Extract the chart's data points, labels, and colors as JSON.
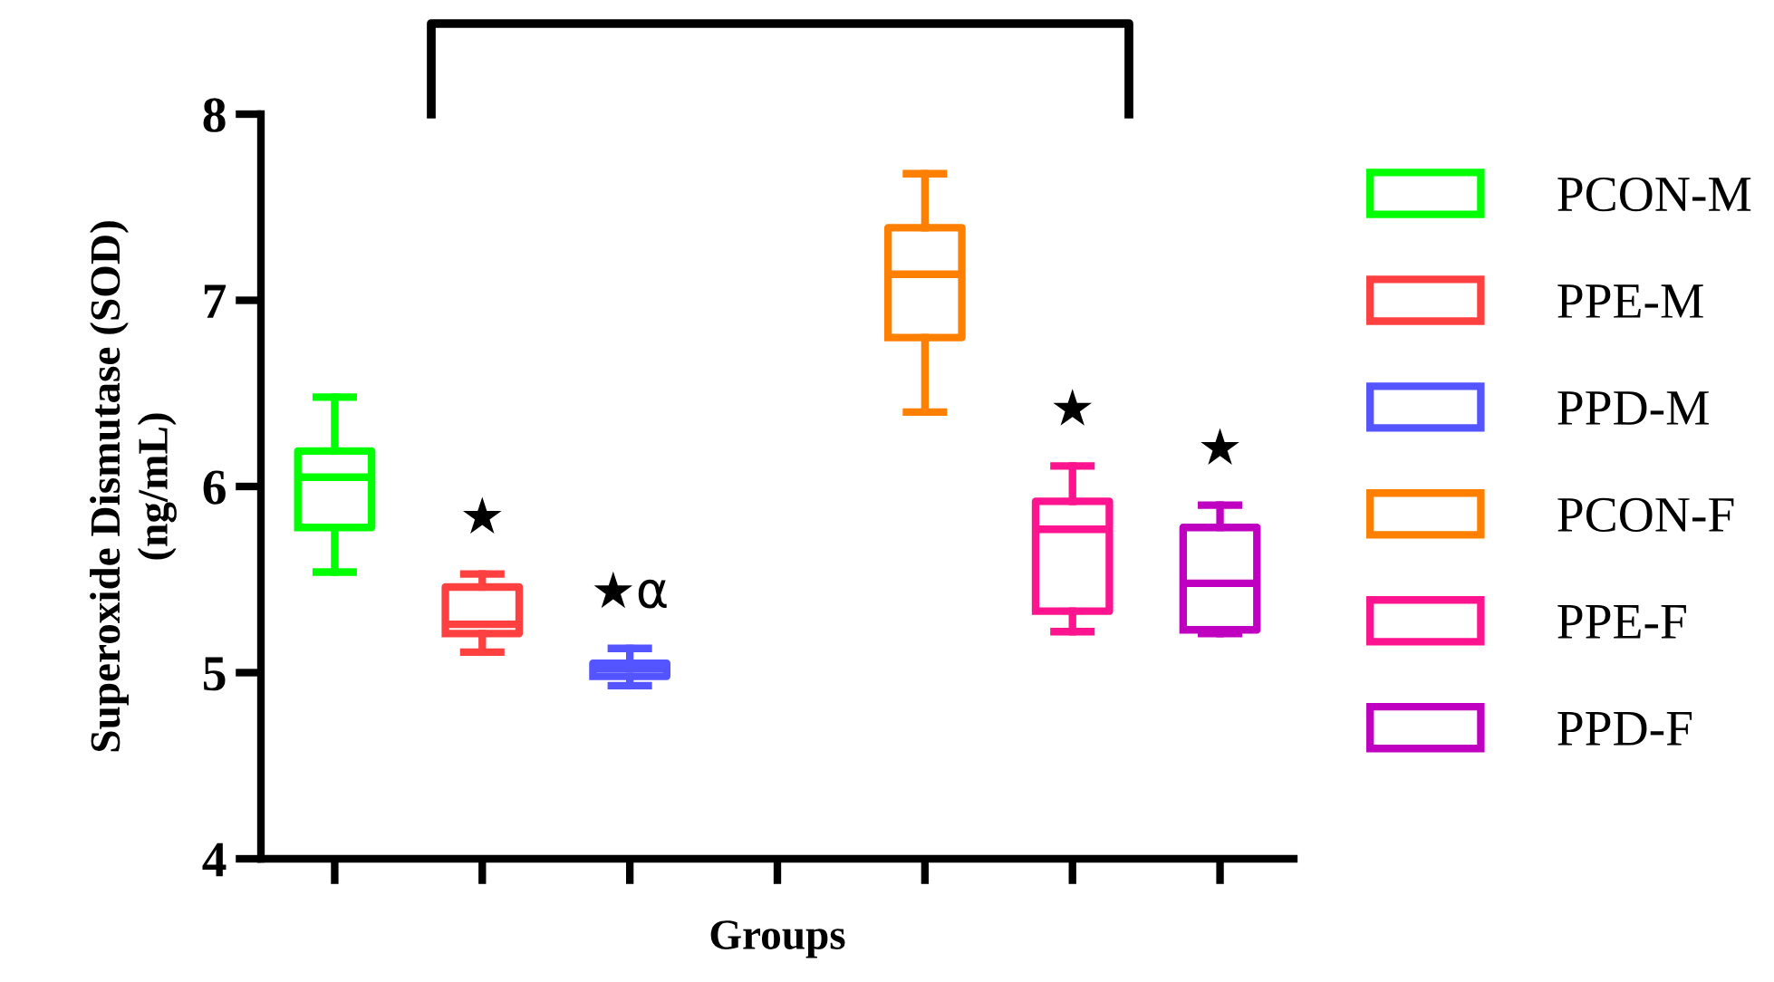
{
  "chart_data": {
    "type": "box",
    "xlabel": "Groups",
    "ylabel": "Superoxide Dismutase (SOD)\n(ng/mL)",
    "categories": [
      null,
      null,
      null,
      null,
      null,
      null,
      null
    ],
    "ylim": [
      4,
      8
    ],
    "yticks": [
      4,
      5,
      6,
      7,
      8
    ],
    "tick_labels": "y",
    "grid": false,
    "legend": "right",
    "series": [
      {
        "name": "PCON-M",
        "color": "#00ff00",
        "boxes": [
          {
            "low": 5.54,
            "q1": 5.78,
            "median": 6.05,
            "q3": 6.19,
            "high": 6.48
          },
          null,
          null,
          null,
          null,
          null,
          null
        ]
      },
      {
        "name": "PPE-M",
        "color": "#ff4040",
        "boxes": [
          null,
          {
            "low": 5.11,
            "q1": 5.21,
            "median": 5.26,
            "q3": 5.46,
            "high": 5.53
          },
          null,
          null,
          null,
          null,
          null
        ]
      },
      {
        "name": "PPD-M",
        "color": "#5555ff",
        "boxes": [
          null,
          null,
          {
            "low": 4.93,
            "q1": 4.98,
            "median": 5.02,
            "q3": 5.05,
            "high": 5.13
          },
          null,
          null,
          null,
          null
        ]
      },
      {
        "name": "PCON-F",
        "color": "#ff8000",
        "boxes": [
          null,
          null,
          null,
          null,
          {
            "low": 6.4,
            "q1": 6.8,
            "median": 7.14,
            "q3": 7.39,
            "high": 7.68
          },
          null,
          null
        ]
      },
      {
        "name": "PPE-F",
        "color": "#ff1490",
        "boxes": [
          null,
          null,
          null,
          null,
          null,
          {
            "low": 5.22,
            "q1": 5.33,
            "median": 5.77,
            "q3": 5.92,
            "high": 6.11
          },
          null
        ]
      },
      {
        "name": "PPD-F",
        "color": "#c000c0",
        "boxes": [
          null,
          null,
          null,
          null,
          null,
          null,
          {
            "low": 5.21,
            "q1": 5.23,
            "median": 5.48,
            "q3": 5.78,
            "high": 5.9
          }
        ]
      }
    ],
    "annotations": [
      "★",
      "★α",
      "★",
      "★"
    ]
  }
}
